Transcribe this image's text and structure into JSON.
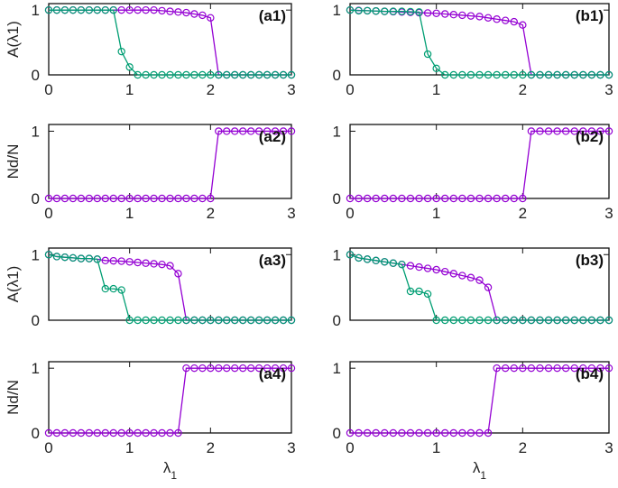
{
  "chart_data": {
    "type": "line",
    "x": [
      0,
      0.1,
      0.2,
      0.3,
      0.4,
      0.5,
      0.6,
      0.7,
      0.8,
      0.9,
      1.0,
      1.1,
      1.2,
      1.3,
      1.4,
      1.5,
      1.6,
      1.7,
      1.8,
      1.9,
      2.0,
      2.1,
      2.2,
      2.3,
      2.4,
      2.5,
      2.6,
      2.7,
      2.8,
      2.9,
      3.0
    ],
    "xlabel": "λ1",
    "xlim": [
      0,
      3
    ],
    "xticks": [
      "0",
      "1",
      "2",
      "3"
    ],
    "colors": {
      "purple": "#9400D3",
      "green": "#009E73"
    },
    "panels": [
      {
        "label": "(a1)",
        "ylabel": "A(λ1)",
        "ylim": [
          0,
          1.1
        ],
        "yticks": [
          "0",
          "1"
        ],
        "series": [
          {
            "name": "purple",
            "values": [
              1,
              1,
              1,
              1,
              1,
              1,
              1,
              1,
              1,
              1,
              1,
              1,
              1,
              1,
              0.99,
              0.98,
              0.97,
              0.96,
              0.94,
              0.92,
              0.88,
              0,
              0,
              0,
              0,
              0,
              0,
              0,
              0,
              0,
              0
            ]
          },
          {
            "name": "green",
            "values": [
              1,
              1,
              1,
              1,
              1,
              1,
              1,
              1,
              1,
              0.36,
              0.12,
              0,
              0,
              0,
              0,
              0,
              0,
              0,
              0,
              0,
              0,
              0,
              0,
              0,
              0,
              0,
              0,
              0,
              0,
              0,
              0
            ]
          }
        ]
      },
      {
        "label": "(b1)",
        "ylabel": "",
        "ylim": [
          0,
          1.1
        ],
        "yticks": [
          "0",
          "1"
        ],
        "series": [
          {
            "name": "purple",
            "values": [
              1,
              0.995,
              0.99,
              0.985,
              0.98,
              0.975,
              0.97,
              0.965,
              0.96,
              0.955,
              0.95,
              0.94,
              0.93,
              0.92,
              0.91,
              0.9,
              0.88,
              0.86,
              0.84,
              0.82,
              0.77,
              0,
              0,
              0,
              0,
              0,
              0,
              0,
              0,
              0,
              0
            ]
          },
          {
            "name": "green",
            "values": [
              1,
              0.99,
              0.99,
              0.985,
              0.98,
              0.98,
              0.98,
              0.975,
              0.97,
              0.32,
              0.1,
              0,
              0,
              0,
              0,
              0,
              0,
              0,
              0,
              0,
              0,
              0,
              0,
              0,
              0,
              0,
              0,
              0,
              0,
              0,
              0
            ]
          }
        ]
      },
      {
        "label": "(a2)",
        "ylabel": "Nd/N",
        "ylim": [
          0,
          1.1
        ],
        "yticks": [
          "0",
          "1"
        ],
        "series": [
          {
            "name": "purple",
            "values": [
              0,
              0,
              0,
              0,
              0,
              0,
              0,
              0,
              0,
              0,
              0,
              0,
              0,
              0,
              0,
              0,
              0,
              0,
              0,
              0,
              0,
              1,
              1,
              1,
              1,
              1,
              1,
              1,
              1,
              1,
              1
            ]
          }
        ]
      },
      {
        "label": "(b2)",
        "ylabel": "",
        "ylim": [
          0,
          1.1
        ],
        "yticks": [
          "0",
          "1"
        ],
        "series": [
          {
            "name": "purple",
            "values": [
              0,
              0,
              0,
              0,
              0,
              0,
              0,
              0,
              0,
              0,
              0,
              0,
              0,
              0,
              0,
              0,
              0,
              0,
              0,
              0,
              0,
              1,
              1,
              1,
              1,
              1,
              1,
              1,
              1,
              1,
              1
            ]
          }
        ]
      },
      {
        "label": "(a3)",
        "ylabel": "A(λ1)",
        "ylim": [
          0,
          1.1
        ],
        "yticks": [
          "0",
          "1"
        ],
        "series": [
          {
            "name": "purple",
            "values": [
              1,
              0.97,
              0.96,
              0.95,
              0.94,
              0.94,
              0.93,
              0.91,
              0.905,
              0.9,
              0.89,
              0.88,
              0.87,
              0.86,
              0.85,
              0.83,
              0.71,
              0,
              0,
              0,
              0,
              0,
              0,
              0,
              0,
              0,
              0,
              0,
              0,
              0,
              0
            ]
          },
          {
            "name": "green",
            "values": [
              1,
              0.97,
              0.96,
              0.95,
              0.94,
              0.94,
              0.93,
              0.48,
              0.48,
              0.46,
              0,
              0,
              0,
              0,
              0,
              0,
              0,
              0,
              0,
              0,
              0,
              0,
              0,
              0,
              0,
              0,
              0,
              0,
              0,
              0,
              0
            ]
          }
        ]
      },
      {
        "label": "(b3)",
        "ylabel": "",
        "ylim": [
          0,
          1.1
        ],
        "yticks": [
          "0",
          "1"
        ],
        "series": [
          {
            "name": "purple",
            "values": [
              1,
              0.95,
              0.93,
              0.91,
              0.89,
              0.87,
              0.85,
              0.83,
              0.81,
              0.79,
              0.77,
              0.74,
              0.71,
              0.68,
              0.65,
              0.61,
              0.5,
              0,
              0,
              0,
              0,
              0,
              0,
              0,
              0,
              0,
              0,
              0,
              0,
              0,
              0
            ]
          },
          {
            "name": "green",
            "values": [
              1,
              0.95,
              0.93,
              0.91,
              0.89,
              0.87,
              0.85,
              0.44,
              0.44,
              0.4,
              0,
              0,
              0,
              0,
              0,
              0,
              0,
              0,
              0,
              0,
              0,
              0,
              0,
              0,
              0,
              0,
              0,
              0,
              0,
              0,
              0
            ]
          }
        ]
      },
      {
        "label": "(a4)",
        "ylabel": "Nd/N",
        "ylim": [
          0,
          1.1
        ],
        "yticks": [
          "0",
          "1"
        ],
        "series": [
          {
            "name": "purple",
            "values": [
              0,
              0,
              0,
              0,
              0,
              0,
              0,
              0,
              0,
              0,
              0,
              0,
              0,
              0,
              0,
              0,
              0,
              1,
              1,
              1,
              1,
              1,
              1,
              1,
              1,
              1,
              1,
              1,
              1,
              1,
              1
            ]
          }
        ]
      },
      {
        "label": "(b4)",
        "ylabel": "",
        "ylim": [
          0,
          1.1
        ],
        "yticks": [
          "0",
          "1"
        ],
        "series": [
          {
            "name": "purple",
            "values": [
              0,
              0,
              0,
              0,
              0,
              0,
              0,
              0,
              0,
              0,
              0,
              0,
              0,
              0,
              0,
              0,
              0,
              1,
              1,
              1,
              1,
              1,
              1,
              1,
              1,
              1,
              1,
              1,
              1,
              1,
              1
            ]
          }
        ]
      }
    ]
  }
}
